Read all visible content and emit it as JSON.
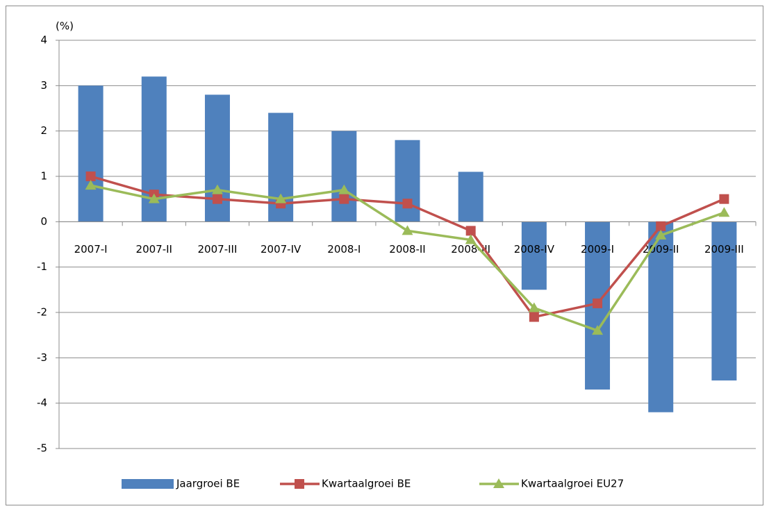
{
  "chart_data": {
    "type": "bar_line",
    "y_label": "(%)",
    "categories": [
      "2007-I",
      "2007-II",
      "2007-III",
      "2007-IV",
      "2008-I",
      "2008-II",
      "2008-III",
      "2008-IV",
      "2009-I",
      "2009-II",
      "2009-III"
    ],
    "series": [
      {
        "name": "Jaargroei BE",
        "type": "bar",
        "color": "#4f81bd",
        "values": [
          3.0,
          3.2,
          2.8,
          2.4,
          2.0,
          1.8,
          1.1,
          -1.5,
          -3.7,
          -4.2,
          -3.5
        ]
      },
      {
        "name": "Kwartaalgroei BE",
        "type": "line",
        "marker": "square",
        "color": "#c0504d",
        "values": [
          1.0,
          0.6,
          0.5,
          0.4,
          0.5,
          0.4,
          -0.2,
          -2.1,
          -1.8,
          -0.1,
          0.5
        ]
      },
      {
        "name": "Kwartaalgroei EU27",
        "type": "line",
        "marker": "triangle",
        "color": "#9bbb59",
        "values": [
          0.8,
          0.5,
          0.7,
          0.5,
          0.7,
          -0.2,
          -0.4,
          -1.9,
          -2.4,
          -0.3,
          0.2
        ]
      }
    ],
    "ylim": [
      -5,
      4
    ],
    "yticks": [
      -5,
      -4,
      -3,
      -2,
      -1,
      0,
      1,
      2,
      3,
      4
    ],
    "grid": true,
    "legend": "bottom"
  }
}
